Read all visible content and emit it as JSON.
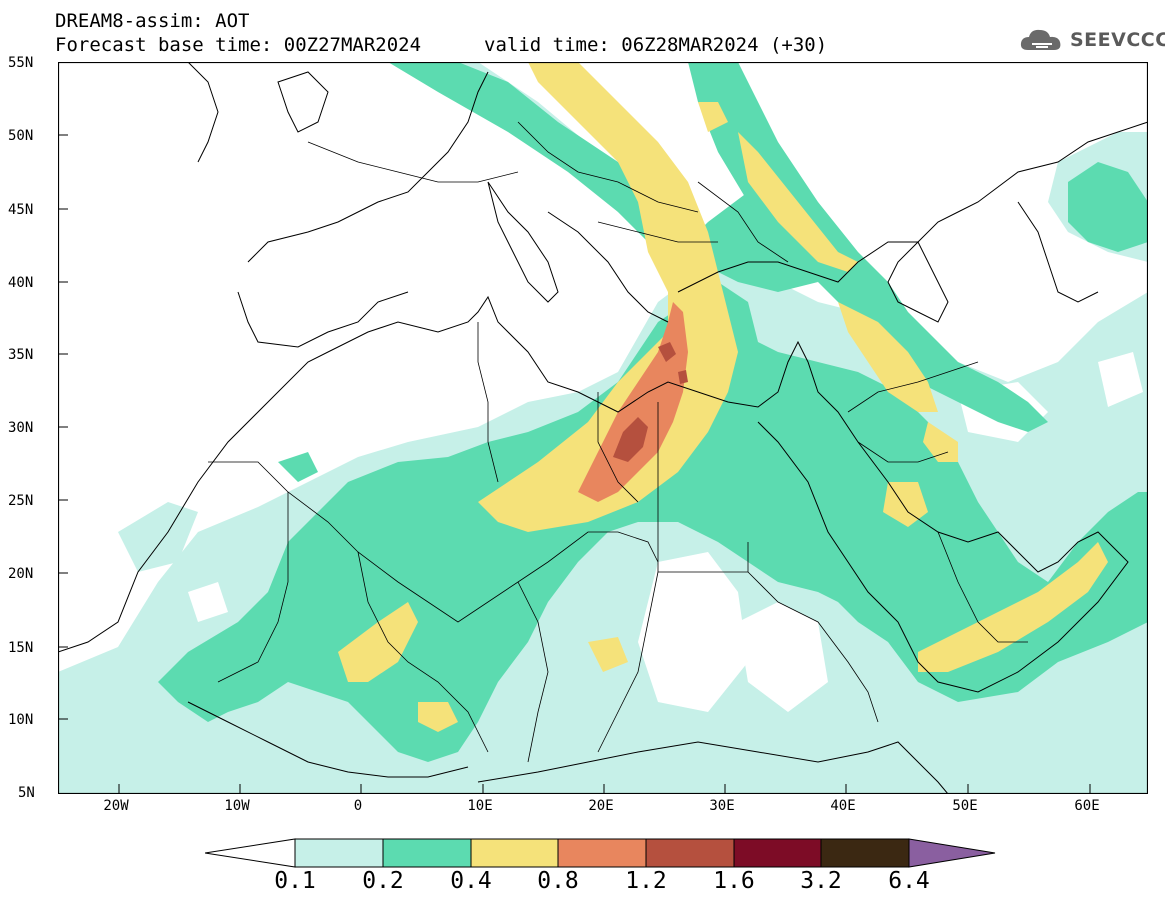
{
  "header": {
    "title": "DREAM8-assim: AOT",
    "base_time": "Forecast base time: 00Z27MAR2024",
    "valid_time": "valid time: 06Z28MAR2024 (+30)"
  },
  "logo": {
    "text": "SEEVCCC",
    "icon": "cloud-icon"
  },
  "axes": {
    "lat_labels": [
      "55N",
      "50N",
      "45N",
      "40N",
      "35N",
      "30N",
      "25N",
      "20N",
      "15N",
      "10N",
      "5N"
    ],
    "lon_labels": [
      "20W",
      "10W",
      "0",
      "10E",
      "20E",
      "30E",
      "40E",
      "50E",
      "60E"
    ],
    "lon_range": [
      -25,
      65
    ],
    "lat_range": [
      5,
      55
    ]
  },
  "legend": {
    "quantity": "AOT",
    "thresholds": [
      "0.1",
      "0.2",
      "0.4",
      "0.8",
      "1.2",
      "1.6",
      "3.2",
      "6.4"
    ],
    "colors": [
      "#c6f0e8",
      "#5cdbb0",
      "#f5e27a",
      "#e8865e",
      "#b5503e",
      "#7d0c26",
      "#3b2812",
      "#8a5fa0"
    ],
    "under_color": "#ffffff"
  },
  "colors": {
    "class_0_1": "#c6f0e8",
    "class_0_2": "#5cdbb0",
    "class_0_4": "#f5e27a",
    "class_0_8": "#e8865e",
    "class_1_2": "#b5503e"
  }
}
